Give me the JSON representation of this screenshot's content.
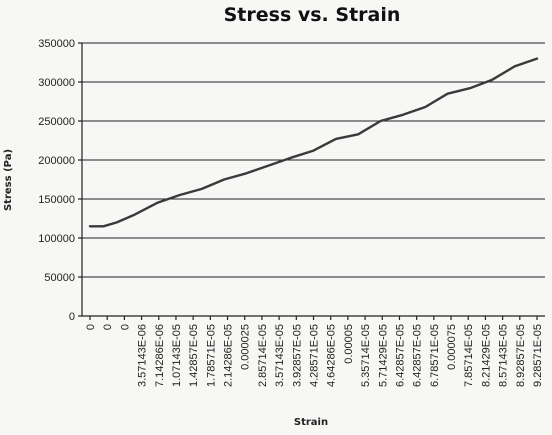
{
  "chart_data": {
    "type": "line",
    "title": "Stress vs. Strain",
    "xlabel": "Strain",
    "ylabel": "Stress (Pa)",
    "ylim": [
      0,
      350000
    ],
    "y_ticks": [
      "0",
      "50000",
      "100000",
      "150000",
      "200000",
      "250000",
      "300000",
      "350000"
    ],
    "x_tick_labels": [
      "0",
      "0",
      "0",
      "3.57143E-06",
      "7.14286E-06",
      "1.07143E-05",
      "1.42857E-05",
      "1.78571E-05",
      "2.14286E-05",
      "0.000025",
      "2.85714E-05",
      "3.57143E-05",
      "3.92857E-05",
      "4.28571E-05",
      "4.64286E-05",
      "0.00005",
      "5.35714E-05",
      "5.71429E-05",
      "6.42857E-05",
      "6.42857E-05",
      "6.78571E-05",
      "0.000075",
      "7.85714E-05",
      "8.21429E-05",
      "8.57143E-05",
      "8.92857E-05",
      "9.28571E-05"
    ],
    "grid": "horizontal",
    "legend": "none",
    "series": [
      {
        "x": [
          0,
          0.03,
          0.06,
          0.1,
          0.15,
          0.2,
          0.25,
          0.3,
          0.35,
          0.4,
          0.45,
          0.5,
          0.55,
          0.6,
          0.65,
          0.7,
          0.75,
          0.8,
          0.85,
          0.9,
          0.95,
          1.0
        ],
        "values": [
          115000,
          115000,
          120000,
          130000,
          145000,
          155000,
          163000,
          175000,
          183000,
          193000,
          203000,
          212000,
          227000,
          233000,
          250000,
          258000,
          268000,
          285000,
          292000,
          303000,
          320000,
          330000
        ]
      }
    ],
    "colors": {
      "line": "#3a3a3a",
      "grid": "#222222",
      "background": "#f7f7f5"
    }
  }
}
